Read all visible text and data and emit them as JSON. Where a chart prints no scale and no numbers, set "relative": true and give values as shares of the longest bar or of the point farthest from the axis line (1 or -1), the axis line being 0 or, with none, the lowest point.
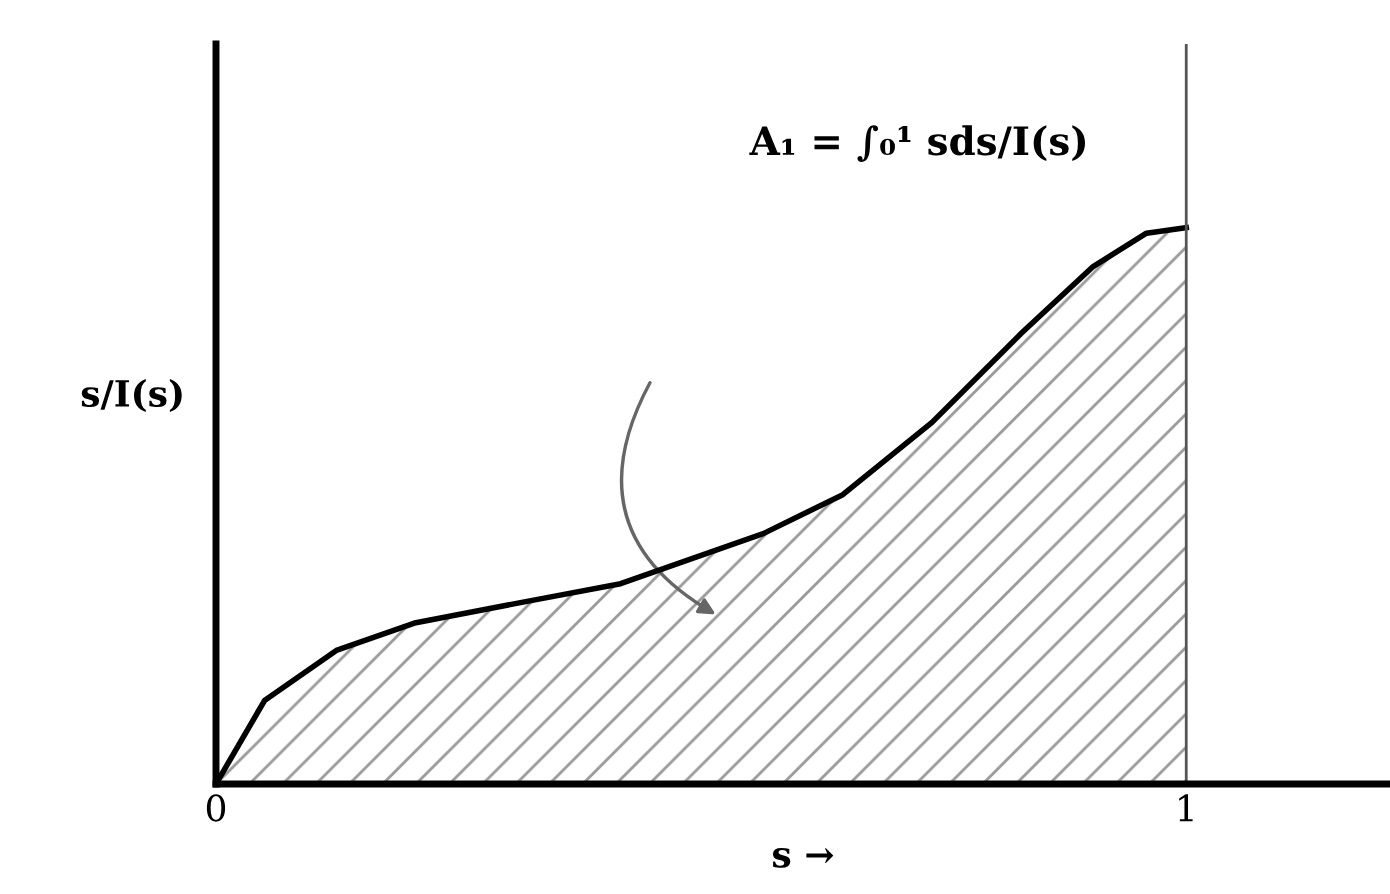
{
  "chart_data": {
    "type": "area",
    "relative": true,
    "xlabel": "s →",
    "ylabel": "s/I(s)",
    "x": [
      0,
      0.05,
      0.124,
      0.206,
      0.326,
      0.417,
      0.564,
      0.646,
      0.738,
      0.83,
      0.904,
      0.959,
      1.0
    ],
    "series": [
      {
        "color": "#000000",
        "values": [
          0,
          0.15,
          0.24,
          0.29,
          0.33,
          0.36,
          0.45,
          0.52,
          0.65,
          0.81,
          0.93,
          0.99,
          1.0
        ]
      }
    ],
    "xlim": [
      0,
      1.21
    ],
    "xticks": [
      0,
      1
    ],
    "tick_labels": "x",
    "grid": false,
    "legend": false,
    "ref_lines": [
      {
        "axis": "x",
        "value": 1,
        "color": "#555555"
      }
    ],
    "annotations": [
      "A₁ = ∫₀¹ sds/I(s)"
    ]
  }
}
